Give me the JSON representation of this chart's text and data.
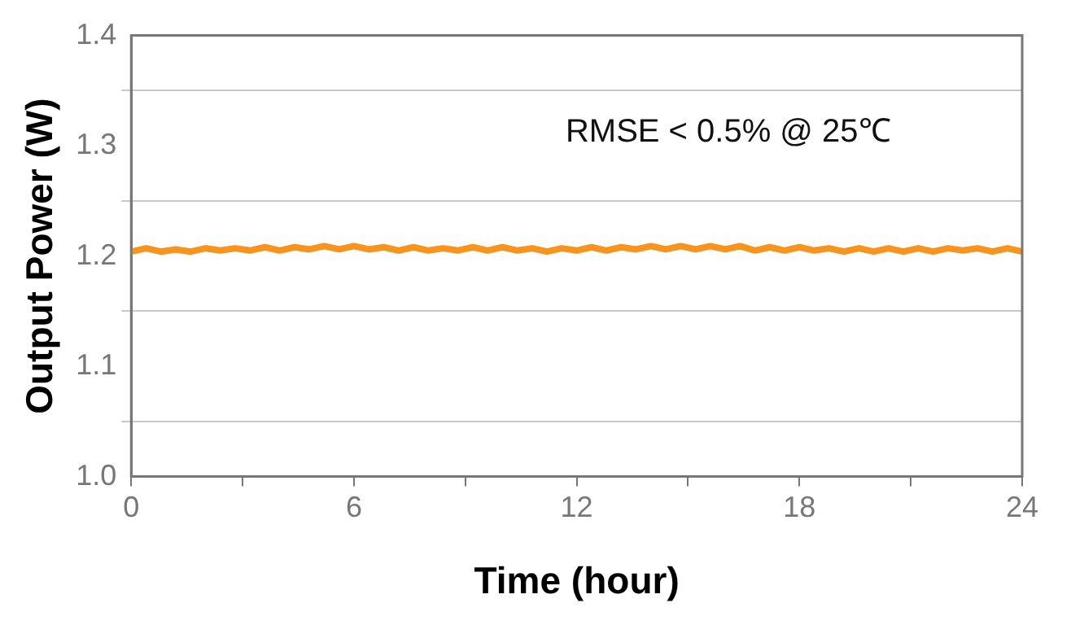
{
  "chart_data": {
    "type": "line",
    "xlabel": "Time (hour)",
    "ylabel": "Output Power (W)",
    "annotations": [
      "RMSE < 0.5% @ 25℃"
    ],
    "x": [
      0,
      0.4,
      0.8,
      1.2,
      1.6,
      2,
      2.4,
      2.8,
      3.2,
      3.6,
      4,
      4.4,
      4.8,
      5.2,
      5.6,
      6,
      6.4,
      6.8,
      7.2,
      7.6,
      8,
      8.4,
      8.8,
      9.2,
      9.6,
      10,
      10.4,
      10.8,
      11.2,
      11.6,
      12,
      12.4,
      12.8,
      13.2,
      13.6,
      14,
      14.4,
      14.8,
      15.2,
      15.6,
      16,
      16.4,
      16.8,
      17.2,
      17.6,
      18,
      18.4,
      18.8,
      19.2,
      19.6,
      20,
      20.4,
      20.8,
      21.2,
      21.6,
      22,
      22.4,
      22.8,
      23.2,
      23.6,
      24
    ],
    "series": [
      {
        "color": "#f7941d",
        "values": [
          1.204,
          1.207,
          1.204,
          1.206,
          1.204,
          1.207,
          1.205,
          1.207,
          1.205,
          1.208,
          1.205,
          1.208,
          1.206,
          1.209,
          1.206,
          1.209,
          1.206,
          1.208,
          1.205,
          1.208,
          1.205,
          1.207,
          1.205,
          1.208,
          1.205,
          1.208,
          1.205,
          1.207,
          1.204,
          1.207,
          1.205,
          1.208,
          1.205,
          1.208,
          1.206,
          1.209,
          1.206,
          1.209,
          1.206,
          1.209,
          1.206,
          1.209,
          1.205,
          1.208,
          1.205,
          1.208,
          1.205,
          1.207,
          1.204,
          1.207,
          1.204,
          1.207,
          1.204,
          1.207,
          1.204,
          1.207,
          1.205,
          1.207,
          1.204,
          1.207,
          1.204
        ]
      }
    ],
    "xlim": [
      0,
      24
    ],
    "xticks": [
      0,
      {
        "value": 3,
        "label": null
      },
      6,
      {
        "value": 9,
        "label": null
      },
      12,
      {
        "value": 15,
        "label": null
      },
      18,
      {
        "value": 21,
        "label": null
      },
      24
    ],
    "ylim": [
      1.0,
      1.4
    ],
    "yticks": [
      {
        "value": 1.0,
        "label": "1.0"
      },
      {
        "value": 1.05,
        "label": null
      },
      1.1,
      {
        "value": 1.15,
        "label": null
      },
      1.2,
      {
        "value": 1.25,
        "label": null
      },
      1.3,
      {
        "value": 1.35,
        "label": null
      },
      1.4
    ],
    "grid": "y",
    "marker": "none",
    "line_style": "solid",
    "legend": false
  }
}
